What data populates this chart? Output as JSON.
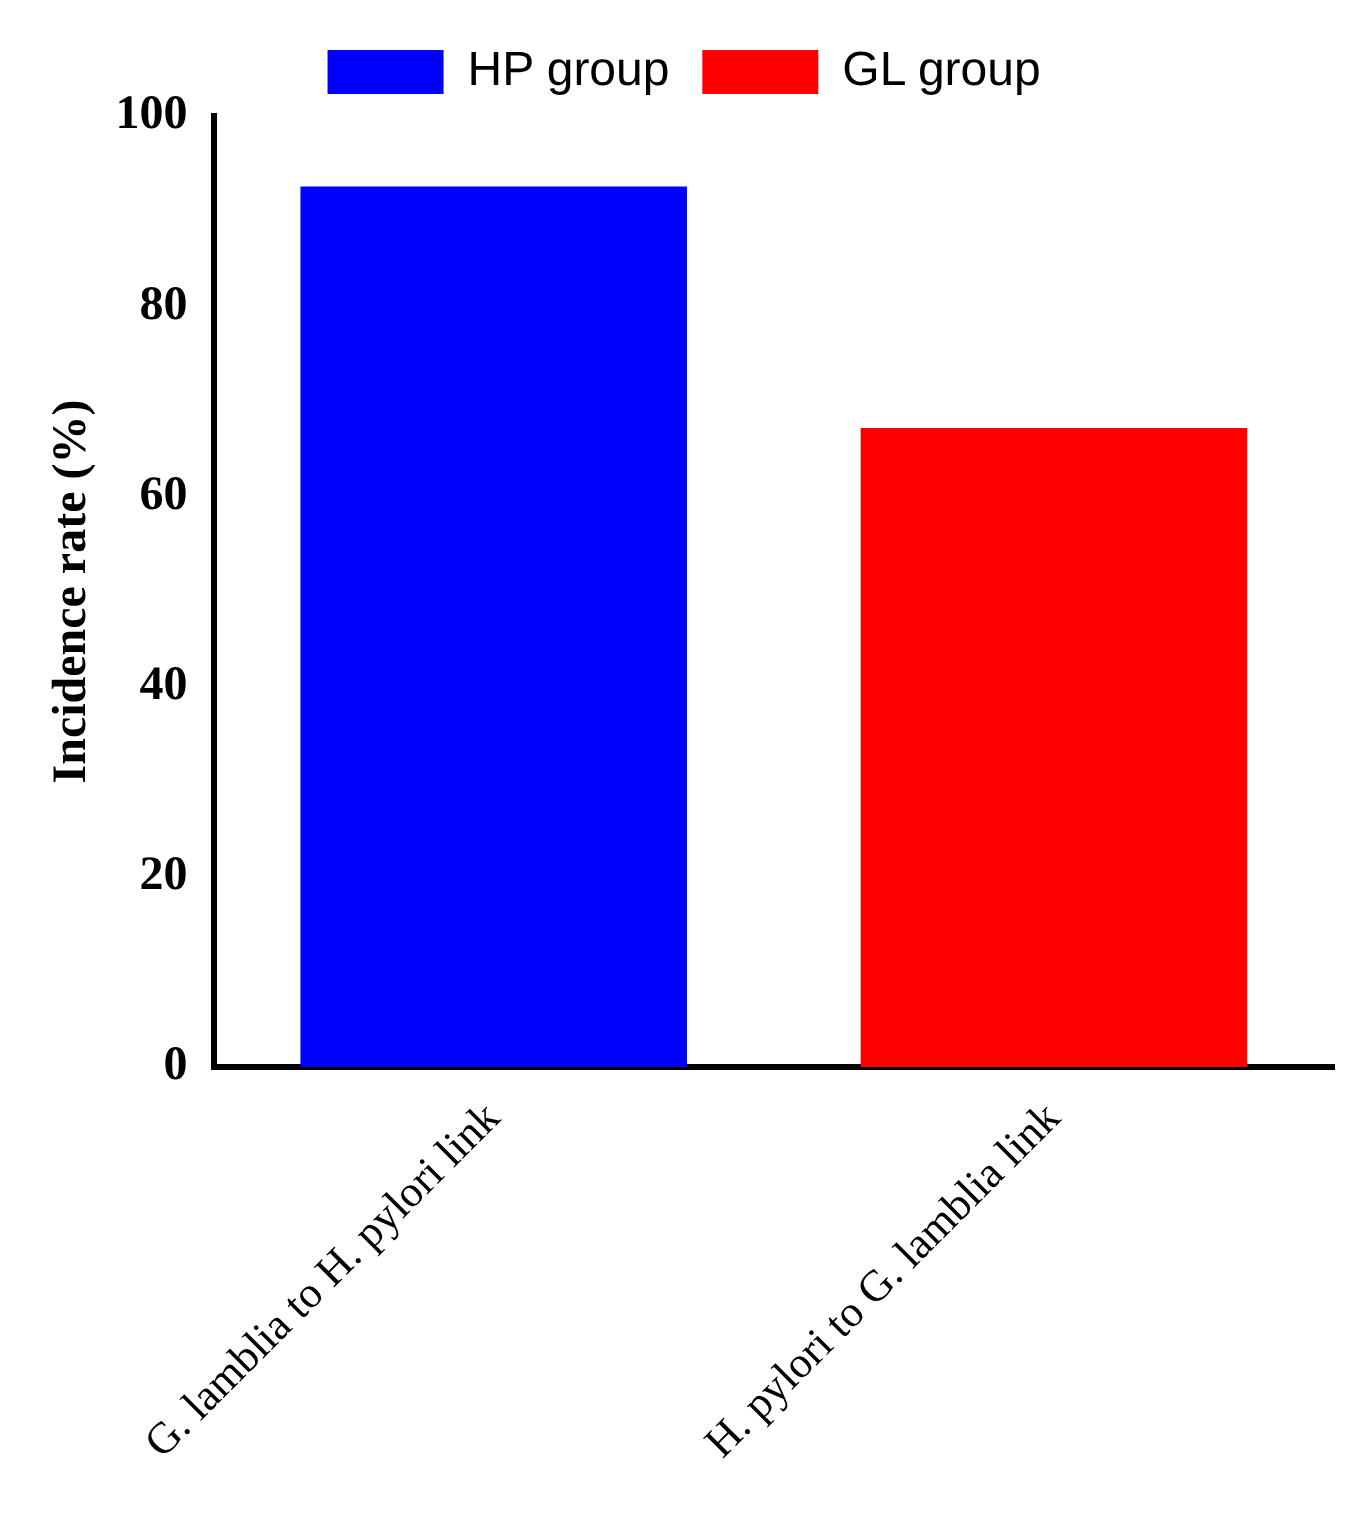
{
  "chart_data": {
    "type": "bar",
    "ylabel": "Incidence rate (%)",
    "categories": [
      "G. lamblia to H. pylori link",
      "H. pylori to G. lamblia link"
    ],
    "series": [
      {
        "name": "HP group",
        "color": "#0000ff",
        "values": [
          92.6,
          null
        ]
      },
      {
        "name": "GL group",
        "color": "#ff0000",
        "values": [
          null,
          67.2
        ]
      }
    ],
    "ylim": [
      0,
      100
    ],
    "yticks": [
      0,
      20,
      40,
      60,
      80,
      100
    ],
    "grid": false,
    "legend": "top"
  }
}
